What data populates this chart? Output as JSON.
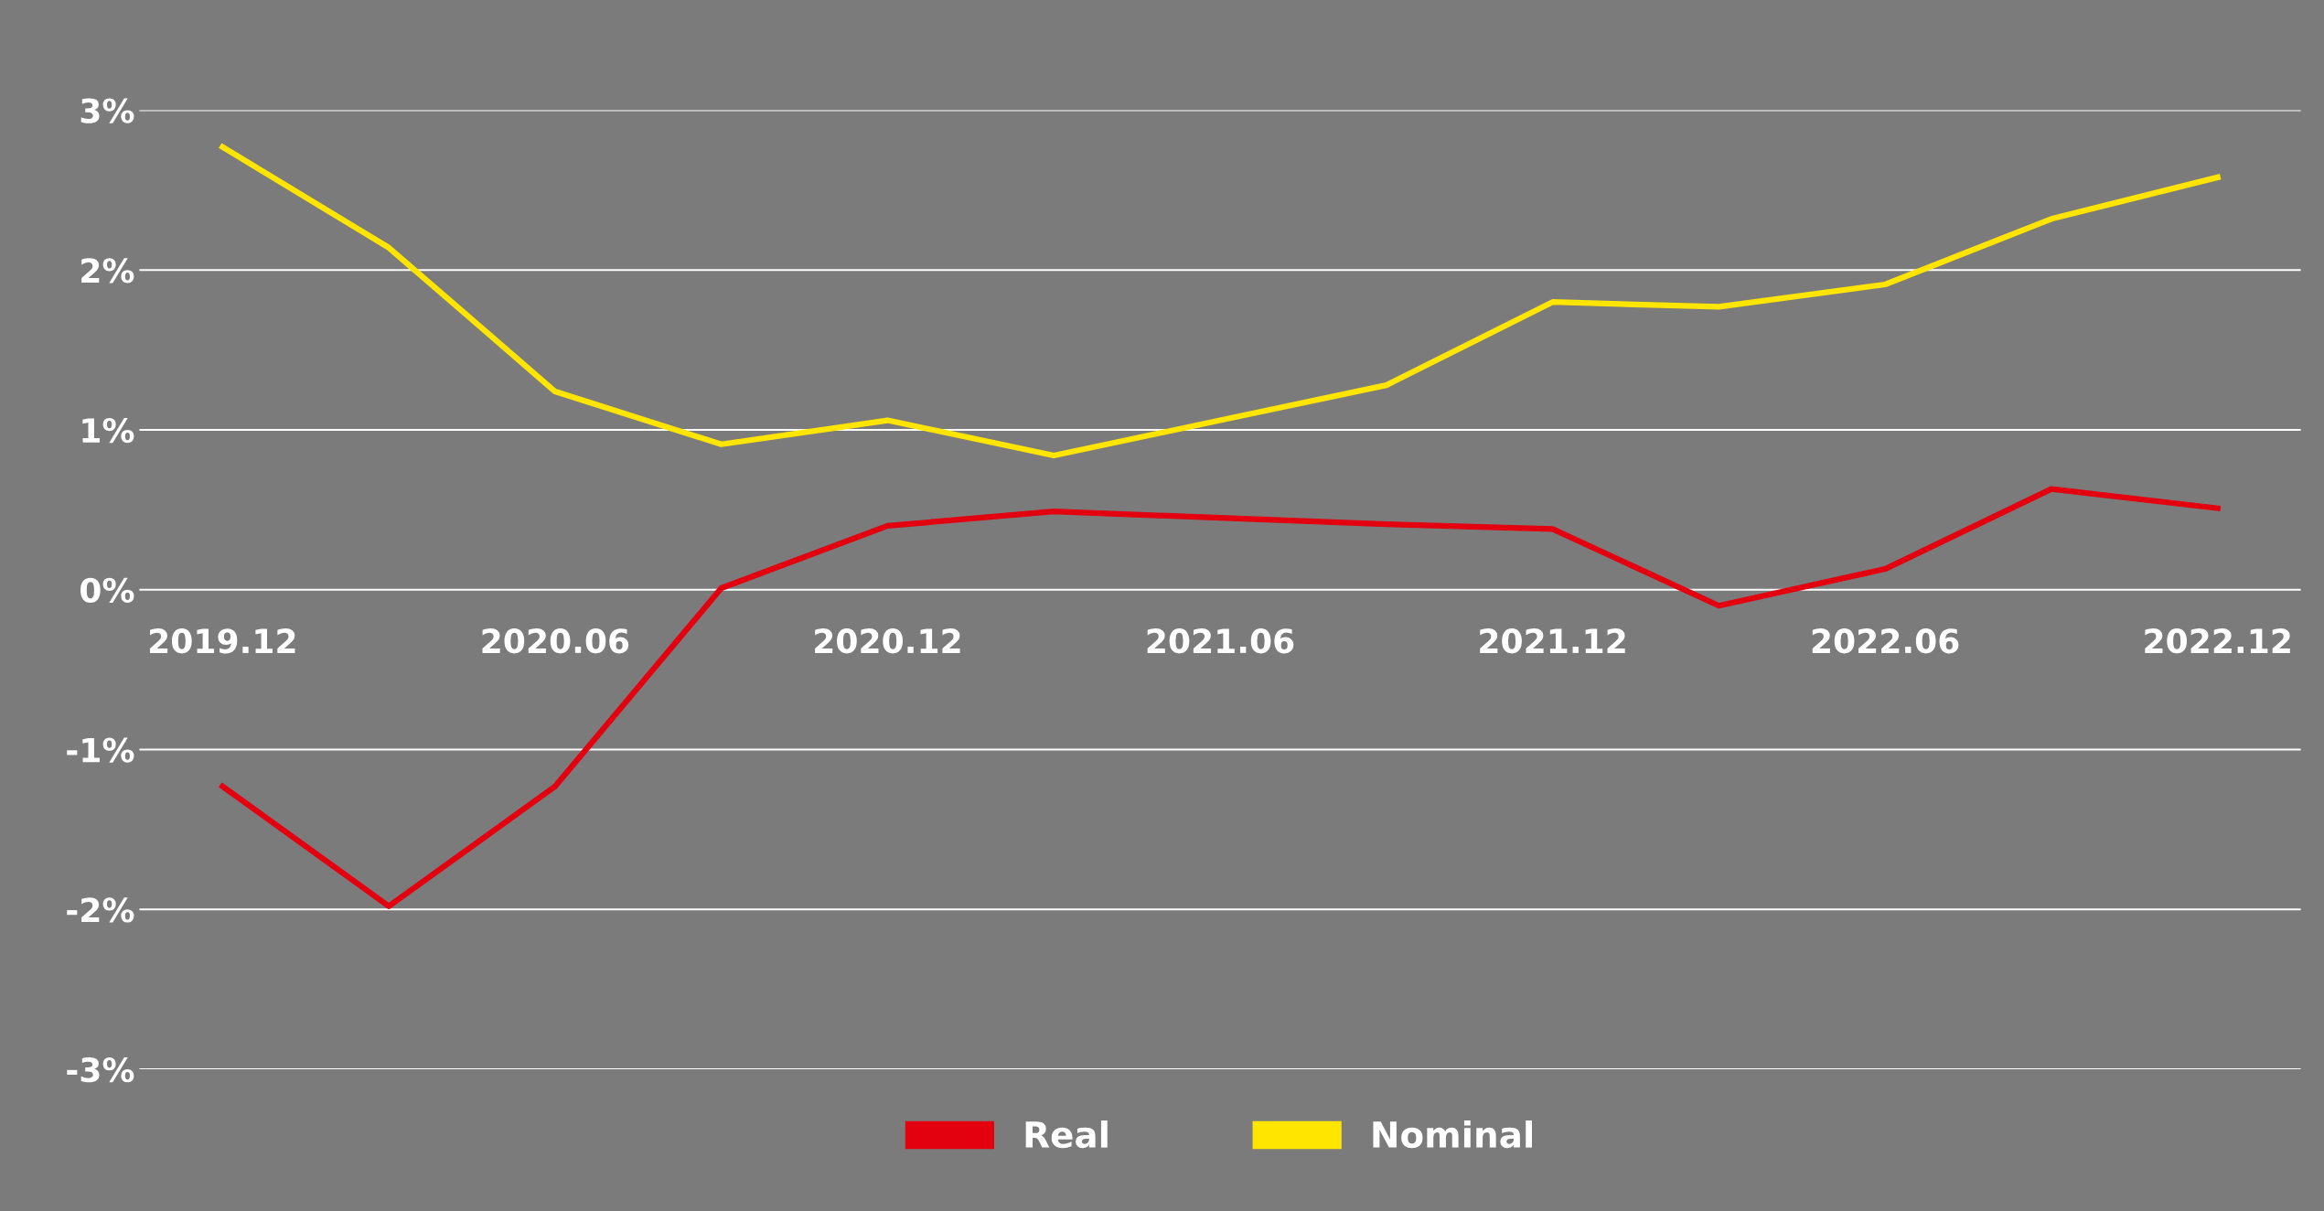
{
  "chart_data": {
    "type": "line",
    "categories": [
      "2019.12",
      null,
      "2020.06",
      null,
      "2020.12",
      null,
      "2021.06",
      null,
      "2021.12",
      null,
      "2022.06",
      null,
      "2022.12"
    ],
    "series": [
      {
        "name": "Real",
        "color": "#e3000f",
        "values": [
          -1.23,
          -1.98,
          -1.23,
          0.01,
          0.4,
          0.49,
          0.45,
          0.41,
          0.38,
          -0.1,
          0.13,
          0.63,
          0.51
        ]
      },
      {
        "name": "Nominal",
        "color": "#ffe500",
        "values": [
          2.77,
          2.14,
          1.24,
          0.91,
          1.06,
          0.84,
          1.06,
          1.28,
          1.8,
          1.77,
          1.91,
          2.32,
          2.58
        ]
      }
    ],
    "ylim": [
      -3,
      3
    ],
    "yticks": [
      {
        "value": -3,
        "label": "-3%"
      },
      {
        "value": -2,
        "label": "-2%"
      },
      {
        "value": -1,
        "label": "-1%"
      },
      {
        "value": 0,
        "label": "0%"
      },
      {
        "value": 1,
        "label": "1%"
      },
      {
        "value": 2,
        "label": "2%"
      },
      {
        "value": 3,
        "label": "3%"
      }
    ],
    "grid": "y",
    "legend": "bottom",
    "marker": "none",
    "line_style": "solid"
  }
}
